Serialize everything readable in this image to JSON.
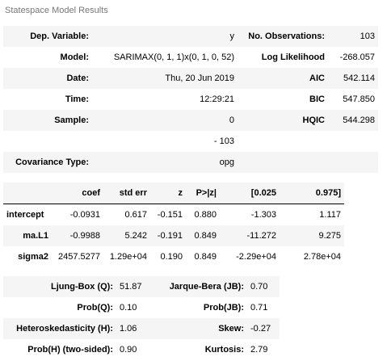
{
  "caption": "Statespace Model Results",
  "summary": {
    "rows": [
      {
        "l1": "Dep. Variable:",
        "v1": "y",
        "l2": "No. Observations:",
        "v2": "103"
      },
      {
        "l1": "Model:",
        "v1": "SARIMAX(0, 1, 1)x(0, 1, 0, 52)",
        "l2": "Log Likelihood",
        "v2": "-268.057"
      },
      {
        "l1": "Date:",
        "v1": "Thu, 20 Jun 2019",
        "l2": "AIC",
        "v2": "542.114"
      },
      {
        "l1": "Time:",
        "v1": "12:29:21",
        "l2": "BIC",
        "v2": "547.850"
      },
      {
        "l1": "Sample:",
        "v1": "0",
        "l2": "HQIC",
        "v2": "544.298"
      },
      {
        "l1": "",
        "v1": "- 103",
        "l2": "",
        "v2": ""
      },
      {
        "l1": "Covariance Type:",
        "v1": "opg",
        "l2": "",
        "v2": ""
      }
    ]
  },
  "coefficients": {
    "headers": [
      "",
      "coef",
      "std err",
      "z",
      "P>|z|",
      "[0.025",
      "0.975]"
    ],
    "rows": [
      [
        "intercept",
        "-0.0931",
        "0.617",
        "-0.151",
        "0.880",
        "-1.303",
        "1.117"
      ],
      [
        "ma.L1",
        "-0.9988",
        "5.242",
        "-0.191",
        "0.849",
        "-11.272",
        "9.275"
      ],
      [
        "sigma2",
        "2457.5277",
        "1.29e+04",
        "0.190",
        "0.849",
        "-2.29e+04",
        "2.78e+04"
      ]
    ]
  },
  "diagnostics": {
    "rows": [
      {
        "l1": "Ljung-Box (Q):",
        "v1": "51.87",
        "l2": "Jarque-Bera (JB):",
        "v2": "0.70"
      },
      {
        "l1": "Prob(Q):",
        "v1": "0.10",
        "l2": "Prob(JB):",
        "v2": "0.71"
      },
      {
        "l1": "Heteroskedasticity (H):",
        "v1": "1.06",
        "l2": "Skew:",
        "v2": "-0.27"
      },
      {
        "l1": "Prob(H) (two-sided):",
        "v1": "0.90",
        "l2": "Kurtosis:",
        "v2": "2.79"
      }
    ]
  }
}
